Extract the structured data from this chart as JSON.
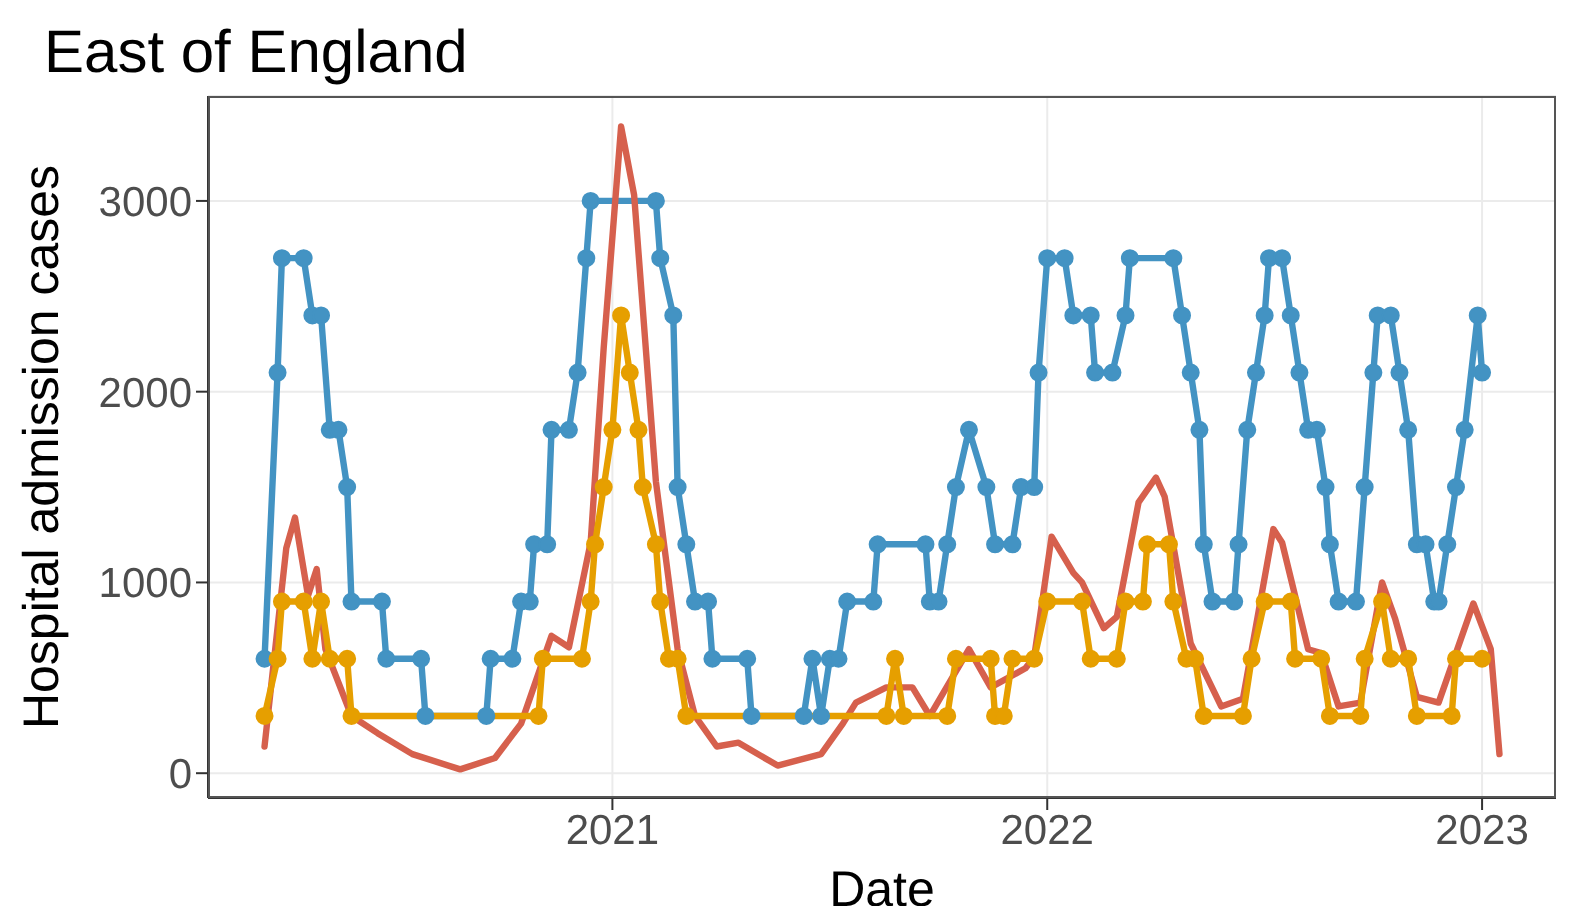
{
  "chart_data": {
    "type": "line",
    "title": "East of England",
    "xlabel": "Date",
    "ylabel": "Hospital admission cases",
    "xlim": [
      2020.07,
      2023.17
    ],
    "xticks": [
      2021,
      2022,
      2023
    ],
    "ylim": [
      -130,
      3550
    ],
    "yticks": [
      0,
      1000,
      2000,
      3000
    ],
    "grid": true,
    "legend": false,
    "series": [
      {
        "color": "#4393c3",
        "marker": "circle",
        "x": [
          2020.2,
          2020.23,
          2020.24,
          2020.29,
          2020.31,
          2020.33,
          2020.35,
          2020.37,
          2020.39,
          2020.4,
          2020.47,
          2020.48,
          2020.56,
          2020.57,
          2020.71,
          2020.72,
          2020.77,
          2020.79,
          2020.81,
          2020.82,
          2020.85,
          2020.86,
          2020.9,
          2020.92,
          2020.94,
          2020.95,
          2021.1,
          2021.11,
          2021.14,
          2021.15,
          2021.17,
          2021.19,
          2021.22,
          2021.23,
          2021.31,
          2021.32,
          2021.44,
          2021.46,
          2021.48,
          2021.5,
          2021.52,
          2021.54,
          2021.6,
          2021.61,
          2021.72,
          2021.73,
          2021.75,
          2021.77,
          2021.79,
          2021.82,
          2021.86,
          2021.88,
          2021.92,
          2021.94,
          2021.97,
          2021.98,
          2022.0,
          2022.04,
          2022.06,
          2022.1,
          2022.11,
          2022.15,
          2022.18,
          2022.19,
          2022.29,
          2022.31,
          2022.33,
          2022.35,
          2022.36,
          2022.38,
          2022.43,
          2022.44,
          2022.46,
          2022.48,
          2022.5,
          2022.51,
          2022.54,
          2022.56,
          2022.58,
          2022.6,
          2022.62,
          2022.64,
          2022.65,
          2022.67,
          2022.71,
          2022.73,
          2022.75,
          2022.76,
          2022.79,
          2022.81,
          2022.83,
          2022.85,
          2022.87,
          2022.89,
          2022.9,
          2022.92,
          2022.94,
          2022.96,
          2022.99,
          2023.0
        ],
        "values": [
          600,
          2100,
          2700,
          2700,
          2400,
          2400,
          1800,
          1800,
          1500,
          900,
          900,
          600,
          600,
          300,
          300,
          600,
          600,
          900,
          900,
          1200,
          1200,
          1800,
          1800,
          2100,
          2700,
          3000,
          3000,
          2700,
          2400,
          1500,
          1200,
          900,
          900,
          600,
          600,
          300,
          300,
          600,
          300,
          600,
          600,
          900,
          900,
          1200,
          1200,
          900,
          900,
          1200,
          1500,
          1800,
          1500,
          1200,
          1200,
          1500,
          1500,
          2100,
          2700,
          2700,
          2400,
          2400,
          2100,
          2100,
          2400,
          2700,
          2700,
          2400,
          2100,
          1800,
          1200,
          900,
          900,
          1200,
          1800,
          2100,
          2400,
          2700,
          2700,
          2400,
          2100,
          1800,
          1800,
          1500,
          1200,
          900,
          900,
          1500,
          2100,
          2400,
          2400,
          2100,
          1800,
          1200,
          1200,
          900,
          900,
          1200,
          1500,
          1800,
          2400,
          2100
        ]
      },
      {
        "color": "#d6604d",
        "marker": "none",
        "x": [
          2020.2,
          2020.25,
          2020.27,
          2020.3,
          2020.32,
          2020.34,
          2020.4,
          2020.46,
          2020.54,
          2020.65,
          2020.73,
          2020.79,
          2020.86,
          2020.9,
          2020.95,
          2020.98,
          2021.02,
          2021.05,
          2021.1,
          2021.15,
          2021.19,
          2021.24,
          2021.29,
          2021.38,
          2021.48,
          2021.53,
          2021.56,
          2021.63,
          2021.69,
          2021.73,
          2021.82,
          2021.87,
          2021.95,
          2021.97,
          2022.01,
          2022.06,
          2022.08,
          2022.13,
          2022.16,
          2022.21,
          2022.25,
          2022.27,
          2022.33,
          2022.4,
          2022.45,
          2022.52,
          2022.54,
          2022.6,
          2022.63,
          2022.67,
          2022.72,
          2022.77,
          2022.8,
          2022.85,
          2022.9,
          2022.98,
          2023.02,
          2023.04
        ],
        "values": [
          140,
          1180,
          1340,
          930,
          1070,
          650,
          300,
          210,
          100,
          20,
          80,
          260,
          720,
          660,
          1210,
          2230,
          3390,
          3030,
          1530,
          650,
          300,
          140,
          160,
          40,
          100,
          260,
          370,
          450,
          450,
          300,
          650,
          450,
          550,
          610,
          1240,
          1050,
          1000,
          760,
          820,
          1420,
          1550,
          1450,
          680,
          350,
          390,
          1280,
          1210,
          650,
          630,
          350,
          370,
          1000,
          810,
          400,
          370,
          890,
          650,
          100
        ]
      },
      {
        "color": "#e69f00",
        "marker": "circle",
        "x": [
          2020.2,
          2020.23,
          2020.24,
          2020.29,
          2020.31,
          2020.33,
          2020.35,
          2020.39,
          2020.4,
          2020.83,
          2020.84,
          2020.93,
          2020.95,
          2020.96,
          2020.98,
          2021.0,
          2021.02,
          2021.04,
          2021.06,
          2021.07,
          2021.1,
          2021.11,
          2021.13,
          2021.15,
          2021.17,
          2021.63,
          2021.65,
          2021.67,
          2021.77,
          2021.79,
          2021.87,
          2021.88,
          2021.9,
          2021.92,
          2021.97,
          2022.0,
          2022.08,
          2022.1,
          2022.16,
          2022.18,
          2022.22,
          2022.23,
          2022.28,
          2022.29,
          2022.32,
          2022.34,
          2022.36,
          2022.45,
          2022.47,
          2022.5,
          2022.56,
          2022.57,
          2022.63,
          2022.65,
          2022.72,
          2022.73,
          2022.77,
          2022.79,
          2022.83,
          2022.85,
          2022.93,
          2022.94,
          2023.0
        ],
        "values": [
          300,
          600,
          900,
          900,
          600,
          900,
          600,
          600,
          300,
          300,
          600,
          600,
          900,
          1200,
          1500,
          1800,
          2400,
          2100,
          1800,
          1500,
          1200,
          900,
          600,
          600,
          300,
          300,
          600,
          300,
          300,
          600,
          600,
          300,
          300,
          600,
          600,
          900,
          900,
          600,
          600,
          900,
          900,
          1200,
          1200,
          900,
          600,
          600,
          300,
          300,
          600,
          900,
          900,
          600,
          600,
          300,
          300,
          600,
          900,
          600,
          600,
          300,
          300,
          600,
          600
        ]
      }
    ]
  }
}
